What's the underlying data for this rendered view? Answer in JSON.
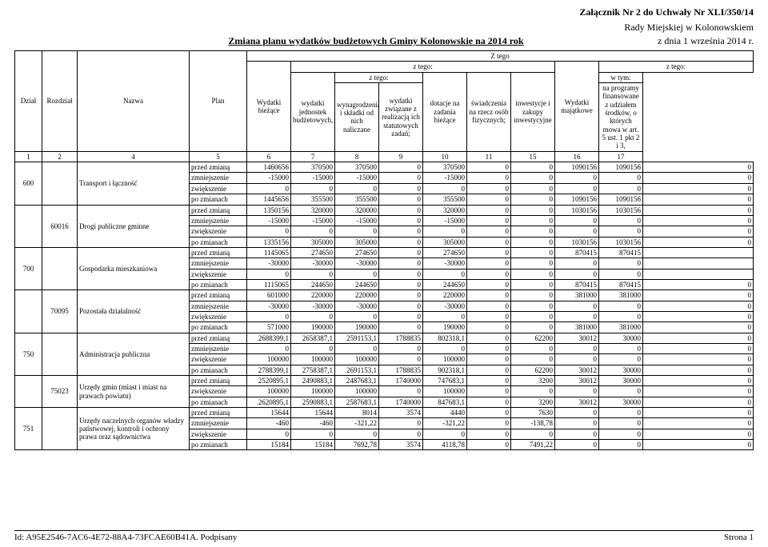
{
  "header": {
    "attachment": "Załącznik Nr 2 do Uchwały Nr XLI/350/14",
    "council": "Rady Miejskiej w Kolonowskiem",
    "date_line": "z dnia 1 września 2014 r.",
    "title": "Zmiana planu wydatków budżetowych Gminy Kolonowskie na 2014 rok"
  },
  "thead": {
    "z_tego_top": "Z tego",
    "z_tego": "z tego:",
    "w_tym": "w tym:",
    "dzial": "Dział",
    "rozdzial": "Rozdział",
    "nazwa": "Nazwa",
    "plan": "Plan",
    "wyd_biezace": "Wydatki bieżące",
    "wyd_jednostek": "wydatki jednostek budżetowych,",
    "wynagrodzenia": "wynagrodzenia i składki od nich naliczane",
    "wyd_zwiazane": "wydatki związane z realizacją ich statutowych zadań;",
    "dotacje": "dotacje na zadania bieżące",
    "swiadczenia": "świadczenia na rzecz osób fizycznych;",
    "wyd_majatkowe": "Wydatki majątkowe",
    "inwestycje": "inwestycje i zakupy inwestycyjne",
    "programy": "na programy finansowane z udziałem środków, o których mowa w art. 5 ust. 1 pkt 2 i 3,",
    "nums": [
      "1",
      "2",
      "4",
      "5",
      "6",
      "7",
      "8",
      "9",
      "10",
      "11",
      "15",
      "16",
      "17"
    ]
  },
  "labels": {
    "przed": "przed zmianą",
    "zmniej": "zmniejszenie",
    "zwiek": "zwiększenie",
    "po": "po zmianach"
  },
  "sections": [
    {
      "dzial": "600",
      "rozdzial": "",
      "nazwa": "Transport i łączność",
      "rows": [
        [
          "przed",
          "1460656",
          "370500",
          "370500",
          "0",
          "370500",
          "0",
          "0",
          "1090156",
          "1090156",
          "0"
        ],
        [
          "zmniej",
          "-15000",
          "-15000",
          "-15000",
          "0",
          "-15000",
          "0",
          "0",
          "0",
          "0",
          "0"
        ],
        [
          "zwiek",
          "0",
          "0",
          "0",
          "0",
          "0",
          "0",
          "0",
          "0",
          "0",
          "0"
        ],
        [
          "po",
          "1445656",
          "355500",
          "355500",
          "0",
          "355500",
          "0",
          "0",
          "1090156",
          "1090156",
          "0"
        ]
      ]
    },
    {
      "dzial": "",
      "rozdzial": "60016",
      "nazwa": "Drogi publiczne gminne",
      "rows": [
        [
          "przed",
          "1350156",
          "320000",
          "320000",
          "0",
          "320000",
          "0",
          "0",
          "1030156",
          "1030156",
          "0"
        ],
        [
          "zmniej",
          "-15000",
          "-15000",
          "-15000",
          "0",
          "-15000",
          "0",
          "0",
          "0",
          "0",
          "0"
        ],
        [
          "zwiek",
          "0",
          "0",
          "0",
          "0",
          "0",
          "0",
          "0",
          "0",
          "0",
          "0"
        ],
        [
          "po",
          "1335156",
          "305000",
          "305000",
          "0",
          "305000",
          "0",
          "0",
          "1030156",
          "1030156",
          "0"
        ]
      ]
    },
    {
      "dzial": "700",
      "rozdzial": "",
      "nazwa": "Gospodarka mieszkaniowa",
      "rows": [
        [
          "przed",
          "1145065",
          "274650",
          "274650",
          "0",
          "274650",
          "0",
          "0",
          "870415",
          "870415",
          ""
        ],
        [
          "zmniej",
          "-30000",
          "-30000",
          "-30000",
          "0",
          "-30000",
          "0",
          "0",
          "0",
          "0",
          ""
        ],
        [
          "zwiek",
          "0",
          "0",
          "0",
          "0",
          "0",
          "0",
          "0",
          "0",
          "0",
          ""
        ],
        [
          "po",
          "1115065",
          "244650",
          "244650",
          "0",
          "244650",
          "0",
          "0",
          "870415",
          "870415",
          "0"
        ]
      ]
    },
    {
      "dzial": "",
      "rozdzial": "70095",
      "nazwa": "Pozostała działalność",
      "rows": [
        [
          "przed",
          "601000",
          "220000",
          "220000",
          "0",
          "220000",
          "0",
          "0",
          "381000",
          "381000",
          "0"
        ],
        [
          "zmniej",
          "-30000",
          "-30000",
          "-30000",
          "0",
          "-30000",
          "0",
          "0",
          "0",
          "0",
          "0"
        ],
        [
          "zwiek",
          "0",
          "0",
          "0",
          "0",
          "0",
          "0",
          "0",
          "0",
          "0",
          "0"
        ],
        [
          "po",
          "571000",
          "190000",
          "190000",
          "0",
          "190000",
          "0",
          "0",
          "381000",
          "381000",
          "0"
        ]
      ]
    },
    {
      "dzial": "750",
      "rozdzial": "",
      "nazwa": "Administracja publiczna",
      "rows": [
        [
          "przed",
          "2688399,1",
          "2658387,1",
          "2591153,1",
          "1788835",
          "802318,1",
          "0",
          "62200",
          "30012",
          "30000",
          "0"
        ],
        [
          "zmniej",
          "0",
          "0",
          "0",
          "0",
          "0",
          "0",
          "0",
          "0",
          "0",
          "0"
        ],
        [
          "zwiek",
          "100000",
          "100000",
          "100000",
          "0",
          "100000",
          "0",
          "0",
          "0",
          "0",
          "0"
        ],
        [
          "po",
          "2788399,1",
          "2758387,1",
          "2691153,1",
          "1788835",
          "902318,1",
          "0",
          "62200",
          "30012",
          "30000",
          "0"
        ]
      ]
    },
    {
      "dzial": "",
      "rozdzial": "75023",
      "nazwa": "Urzędy gmin (miast i miast na prawach powiatu)",
      "rows": [
        [
          "przed",
          "2520895,1",
          "2490883,1",
          "2487683,1",
          "1740000",
          "747683,1",
          "0",
          "3200",
          "30012",
          "30000",
          "0"
        ],
        [
          "zwiek",
          "100000",
          "100000",
          "100000",
          "0",
          "100000",
          "0",
          "0",
          "0",
          "0",
          "0"
        ],
        [
          "po",
          "2620895,1",
          "2590883,1",
          "2587683,1",
          "1740000",
          "847683,1",
          "0",
          "3200",
          "30012",
          "30000",
          "0"
        ]
      ]
    },
    {
      "dzial": "751",
      "rozdzial": "",
      "nazwa": "Urzędy naczelnych organów władzy państwowej, kontroli i ochrony prawa oraz sądownictwa",
      "rows": [
        [
          "przed",
          "15644",
          "15644",
          "8014",
          "3574",
          "4440",
          "0",
          "7630",
          "0",
          "0",
          "0"
        ],
        [
          "zmniej",
          "-460",
          "-460",
          "-321,22",
          "0",
          "-321,22",
          "0",
          "-138,78",
          "0",
          "0",
          "0"
        ],
        [
          "zwiek",
          "0",
          "0",
          "0",
          "0",
          "0",
          "0",
          "0",
          "0",
          "0",
          "0"
        ],
        [
          "po",
          "15184",
          "15184",
          "7692,78",
          "3574",
          "4118,78",
          "0",
          "7491,22",
          "0",
          "0",
          "0"
        ]
      ]
    }
  ],
  "footer": {
    "id": "Id: A95E2546-7AC6-4E72-88A4-73FCAE60B41A. Podpisany",
    "page": "Strona 1"
  }
}
